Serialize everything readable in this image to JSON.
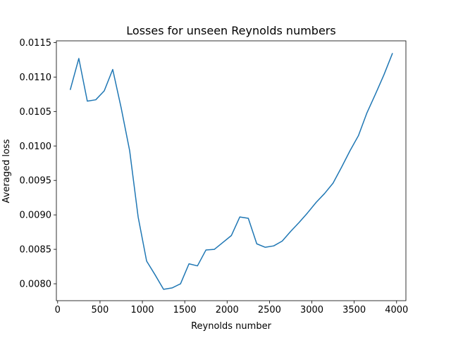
{
  "chart_data": {
    "type": "line",
    "title": "Losses for unseen Reynolds numbers",
    "xlabel": "Reynolds number",
    "ylabel": "Averaged loss",
    "xlim": [
      -15,
      4110
    ],
    "ylim": [
      0.007755,
      0.011525
    ],
    "xticks": [
      0,
      500,
      1000,
      1500,
      2000,
      2500,
      3000,
      3500,
      4000
    ],
    "xtick_labels": [
      "0",
      "500",
      "1000",
      "1500",
      "2000",
      "2500",
      "3000",
      "3500",
      "4000"
    ],
    "yticks": [
      0.008,
      0.0085,
      0.009,
      0.0095,
      0.01,
      0.0105,
      0.011,
      0.0115
    ],
    "ytick_labels": [
      "0.0080",
      "0.0085",
      "0.0090",
      "0.0095",
      "0.0100",
      "0.0105",
      "0.0110",
      "0.0115"
    ],
    "grid": false,
    "series": [
      {
        "color": "#1f77b4",
        "x": [
          150,
          250,
          350,
          450,
          550,
          650,
          750,
          850,
          950,
          1050,
          1150,
          1250,
          1350,
          1450,
          1550,
          1650,
          1750,
          1850,
          1950,
          2050,
          2150,
          2250,
          2350,
          2450,
          2550,
          2650,
          2750,
          2850,
          2950,
          3050,
          3150,
          3250,
          3350,
          3450,
          3550,
          3650,
          3750,
          3850,
          3950
        ],
        "y": [
          0.01082,
          0.01127,
          0.01065,
          0.01067,
          0.0108,
          0.01111,
          0.01055,
          0.00993,
          0.00897,
          0.00833,
          0.00813,
          0.00792,
          0.00794,
          0.008,
          0.00829,
          0.00826,
          0.00849,
          0.0085,
          0.0086,
          0.0087,
          0.00897,
          0.00895,
          0.00858,
          0.00853,
          0.00855,
          0.00862,
          0.00876,
          0.00889,
          0.00903,
          0.00918,
          0.00931,
          0.00946,
          0.00969,
          0.00993,
          0.01015,
          0.01048,
          0.01075,
          0.01103,
          0.01134
        ]
      }
    ]
  }
}
